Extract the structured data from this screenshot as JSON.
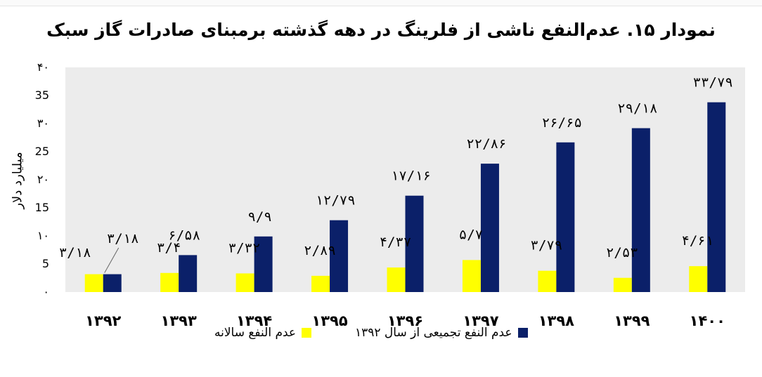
{
  "chart_data": {
    "type": "bar",
    "title": "نمودار ۱۵. عدم‌النفع ناشی از فلرینگ در دهه گذشته برمبنای صادرات گاز سبک",
    "ylabel": "میلیارد دلار",
    "ylim": [
      0,
      40
    ],
    "yticks": [
      "۰",
      "5",
      "۱۰",
      "15",
      "۲۰",
      "25",
      "۳۰",
      "35",
      "۴۰"
    ],
    "categories": [
      "۱۳۹۲",
      "۱۳۹۳",
      "۱۳۹۴",
      "۱۳۹۵",
      "۱۳۹۶",
      "۱۳۹۷",
      "۱۳۹۸",
      "۱۳۹۹",
      "۱۴۰۰"
    ],
    "series": [
      {
        "name": "عدم النفع سالانه",
        "color": "#ffff00",
        "values": [
          3.18,
          3.4,
          3.32,
          2.89,
          4.37,
          5.7,
          3.79,
          2.53,
          4.61
        ],
        "labels": [
          "۳/۱۸",
          "۳/۴",
          "۳/۳۲",
          "۲/۸۹",
          "۴/۳۷",
          "۵/۷",
          "۳/۷۹",
          "۲/۵۳",
          "۴/۶۱"
        ]
      },
      {
        "name": "عدم النفع تجمیعی از سال ۱۳۹۲",
        "color": "#0b2069",
        "values": [
          3.18,
          6.58,
          9.9,
          12.79,
          17.16,
          22.86,
          26.65,
          29.18,
          33.79
        ],
        "labels": [
          "۳/۱۸",
          "۶/۵۸",
          "۹/۹",
          "۱۲/۷۹",
          "۱۷/۱۶",
          "۲۲/۸۶",
          "۲۶/۶۵",
          "۲۹/۱۸",
          "۳۳/۷۹"
        ]
      }
    ],
    "grid": false,
    "legend_position": "bottom"
  }
}
